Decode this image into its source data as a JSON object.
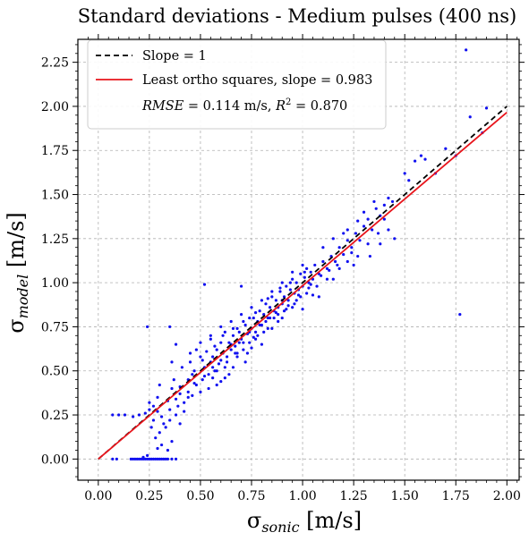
{
  "chart_data": {
    "type": "scatter",
    "title": "Standard deviations - Medium pulses (400 ns)",
    "xlabel": {
      "symbol": "σ",
      "subscript": "sonic",
      "unit": " [m/s]"
    },
    "ylabel": {
      "symbol": "σ",
      "subscript": "model",
      "unit": " [m/s]"
    },
    "xlim": [
      -0.1,
      2.06
    ],
    "ylim": [
      -0.12,
      2.38
    ],
    "x_ticks": [
      0.0,
      0.25,
      0.5,
      0.75,
      1.0,
      1.25,
      1.5,
      1.75,
      2.0
    ],
    "x_tick_labels": [
      "0.00",
      "0.25",
      "0.50",
      "0.75",
      "1.00",
      "1.25",
      "1.50",
      "1.75",
      "2.00"
    ],
    "y_ticks": [
      0.0,
      0.25,
      0.5,
      0.75,
      1.0,
      1.25,
      1.5,
      1.75,
      2.0,
      2.25
    ],
    "y_tick_labels": [
      "0.00",
      "0.25",
      "0.50",
      "0.75",
      "1.00",
      "1.25",
      "1.50",
      "1.75",
      "2.00",
      "2.25"
    ],
    "grid": true,
    "legend_position": "top-left",
    "legend": {
      "slope_line": "Slope = 1",
      "fit_line": "Least ortho squares, slope = 0.983",
      "stats": {
        "rmse_symbol": "RMSE",
        "rmse_value": " = 0.114 m/s, ",
        "r2_base": "R",
        "r2_exp": "2",
        "r2_value": " = 0.870"
      }
    },
    "lines": [
      {
        "name": "Slope = 1",
        "style": "dashed",
        "color": "#000000",
        "x": [
          0.0,
          2.0
        ],
        "y": [
          0.0,
          2.0
        ]
      },
      {
        "name": "Least ortho squares, slope = 0.983",
        "style": "solid",
        "color": "#e8141b",
        "x": [
          0.0,
          2.0
        ],
        "y": [
          0.0,
          1.966
        ]
      }
    ],
    "scatter_color": "#1010f0",
    "series": [
      {
        "points": [
          [
            0.07,
            0.25
          ],
          [
            0.1,
            0.25
          ],
          [
            0.13,
            0.25
          ],
          [
            0.17,
            0.24
          ],
          [
            0.2,
            0.25
          ],
          [
            0.23,
            0.26
          ],
          [
            0.25,
            0.28
          ],
          [
            0.27,
            0.3
          ],
          [
            0.29,
            0.35
          ],
          [
            0.3,
            0.42
          ],
          [
            0.24,
            0.75
          ],
          [
            0.35,
            0.75
          ],
          [
            0.52,
            0.99
          ],
          [
            0.7,
            0.98
          ],
          [
            0.9,
            0.8
          ],
          [
            0.3,
            0.15
          ],
          [
            0.32,
            0.2
          ],
          [
            0.35,
            0.28
          ],
          [
            0.34,
            0.33
          ],
          [
            0.26,
            0.18
          ],
          [
            0.28,
            0.12
          ],
          [
            0.36,
            0.1
          ],
          [
            0.34,
            0.05
          ],
          [
            0.38,
            0.25
          ],
          [
            0.4,
            0.2
          ],
          [
            0.39,
            0.3
          ],
          [
            0.42,
            0.27
          ],
          [
            0.4,
            0.41
          ],
          [
            0.44,
            0.45
          ],
          [
            0.44,
            0.35
          ],
          [
            0.37,
            0.45
          ],
          [
            0.36,
            0.55
          ],
          [
            0.38,
            0.65
          ],
          [
            0.41,
            0.52
          ],
          [
            0.45,
            0.55
          ],
          [
            0.46,
            0.48
          ],
          [
            0.47,
            0.43
          ],
          [
            0.48,
            0.62
          ],
          [
            0.5,
            0.58
          ],
          [
            0.51,
            0.45
          ],
          [
            0.52,
            0.52
          ],
          [
            0.53,
            0.61
          ],
          [
            0.54,
            0.48
          ],
          [
            0.55,
            0.55
          ],
          [
            0.56,
            0.58
          ],
          [
            0.57,
            0.5
          ],
          [
            0.58,
            0.62
          ],
          [
            0.59,
            0.54
          ],
          [
            0.6,
            0.66
          ],
          [
            0.61,
            0.6
          ],
          [
            0.62,
            0.52
          ],
          [
            0.63,
            0.58
          ],
          [
            0.64,
            0.66
          ],
          [
            0.65,
            0.62
          ],
          [
            0.66,
            0.7
          ],
          [
            0.67,
            0.64
          ],
          [
            0.68,
            0.58
          ],
          [
            0.69,
            0.72
          ],
          [
            0.7,
            0.68
          ],
          [
            0.71,
            0.62
          ],
          [
            0.72,
            0.76
          ],
          [
            0.73,
            0.71
          ],
          [
            0.74,
            0.66
          ],
          [
            0.75,
            0.74
          ],
          [
            0.76,
            0.8
          ],
          [
            0.77,
            0.72
          ],
          [
            0.78,
            0.78
          ],
          [
            0.79,
            0.84
          ],
          [
            0.8,
            0.76
          ],
          [
            0.81,
            0.82
          ],
          [
            0.82,
            0.88
          ],
          [
            0.83,
            0.8
          ],
          [
            0.84,
            0.86
          ],
          [
            0.85,
            0.92
          ],
          [
            0.86,
            0.84
          ],
          [
            0.87,
            0.9
          ],
          [
            0.88,
            0.86
          ],
          [
            0.89,
            0.95
          ],
          [
            0.9,
            0.88
          ],
          [
            0.91,
            0.92
          ],
          [
            0.92,
            0.98
          ],
          [
            0.93,
            0.9
          ],
          [
            0.94,
            0.96
          ],
          [
            0.95,
            1.02
          ],
          [
            0.96,
            0.94
          ],
          [
            0.97,
            1.0
          ],
          [
            0.98,
            0.96
          ],
          [
            0.99,
            1.05
          ],
          [
            1.0,
            0.98
          ],
          [
            1.01,
            1.03
          ],
          [
            1.02,
            1.08
          ],
          [
            1.03,
            1.0
          ],
          [
            1.04,
            1.06
          ],
          [
            1.05,
            1.02
          ],
          [
            1.06,
            1.1
          ],
          [
            1.08,
            1.05
          ],
          [
            1.1,
            1.12
          ],
          [
            1.12,
            1.08
          ],
          [
            1.14,
            1.15
          ],
          [
            1.16,
            1.12
          ],
          [
            1.18,
            1.2
          ],
          [
            1.2,
            1.16
          ],
          [
            1.22,
            1.24
          ],
          [
            1.24,
            1.2
          ],
          [
            1.26,
            1.28
          ],
          [
            1.28,
            1.24
          ],
          [
            1.3,
            1.32
          ],
          [
            1.32,
            1.36
          ],
          [
            1.34,
            1.3
          ],
          [
            1.36,
            1.42
          ],
          [
            1.38,
            1.38
          ],
          [
            1.4,
            1.44
          ],
          [
            1.42,
            1.48
          ],
          [
            1.44,
            1.46
          ],
          [
            1.24,
            1.17
          ],
          [
            1.22,
            1.3
          ],
          [
            1.2,
            1.28
          ],
          [
            1.18,
            1.08
          ],
          [
            1.15,
            1.25
          ],
          [
            1.1,
            1.2
          ],
          [
            1.05,
            0.93
          ],
          [
            1.0,
            0.85
          ],
          [
            0.95,
            0.86
          ],
          [
            0.88,
            0.78
          ],
          [
            0.85,
            0.74
          ],
          [
            0.8,
            0.65
          ],
          [
            0.75,
            0.63
          ],
          [
            0.72,
            0.55
          ],
          [
            0.68,
            0.6
          ],
          [
            0.66,
            0.52
          ],
          [
            0.64,
            0.48
          ],
          [
            0.62,
            0.46
          ],
          [
            0.6,
            0.44
          ],
          [
            0.58,
            0.42
          ],
          [
            0.56,
            0.46
          ],
          [
            0.54,
            0.4
          ],
          [
            0.5,
            0.38
          ],
          [
            0.48,
            0.42
          ],
          [
            0.46,
            0.36
          ],
          [
            0.44,
            0.38
          ],
          [
            0.42,
            0.32
          ],
          [
            0.4,
            0.37
          ],
          [
            0.38,
            0.34
          ],
          [
            0.36,
            0.4
          ],
          [
            0.35,
            0.22
          ],
          [
            0.33,
            0.18
          ],
          [
            0.31,
            0.24
          ],
          [
            0.29,
            0.27
          ],
          [
            0.27,
            0.22
          ],
          [
            0.25,
            0.32
          ],
          [
            0.55,
            0.7
          ],
          [
            0.6,
            0.75
          ],
          [
            0.65,
            0.78
          ],
          [
            0.7,
            0.82
          ],
          [
            0.75,
            0.86
          ],
          [
            0.8,
            0.9
          ],
          [
            0.85,
            0.95
          ],
          [
            0.9,
            1.0
          ],
          [
            0.95,
            1.06
          ],
          [
            1.0,
            1.1
          ],
          [
            0.45,
            0.6
          ],
          [
            0.5,
            0.66
          ],
          [
            0.55,
            0.68
          ],
          [
            0.62,
            0.72
          ],
          [
            0.68,
            0.74
          ],
          [
            0.74,
            0.8
          ],
          [
            0.78,
            0.7
          ],
          [
            0.83,
            0.74
          ],
          [
            0.88,
            0.82
          ],
          [
            0.92,
            0.85
          ],
          [
            0.97,
            0.9
          ],
          [
            1.02,
            0.94
          ],
          [
            1.07,
            0.98
          ],
          [
            1.12,
            1.02
          ],
          [
            1.17,
            1.1
          ],
          [
            1.22,
            1.12
          ],
          [
            1.27,
            1.15
          ],
          [
            1.32,
            1.22
          ],
          [
            1.37,
            1.28
          ],
          [
            1.42,
            1.3
          ],
          [
            1.3,
            1.4
          ],
          [
            1.35,
            1.46
          ],
          [
            1.4,
            1.36
          ],
          [
            1.45,
            1.25
          ],
          [
            1.33,
            1.15
          ],
          [
            1.38,
            1.22
          ],
          [
            1.27,
            1.35
          ],
          [
            1.25,
            1.1
          ],
          [
            1.15,
            1.02
          ],
          [
            1.08,
            0.92
          ],
          [
            1.5,
            1.62
          ],
          [
            1.52,
            1.58
          ],
          [
            1.55,
            1.69
          ],
          [
            1.58,
            1.72
          ],
          [
            1.6,
            1.7
          ],
          [
            1.65,
            1.62
          ],
          [
            1.7,
            1.76
          ],
          [
            1.75,
            1.72
          ],
          [
            1.82,
            1.94
          ],
          [
            1.88,
            1.85
          ],
          [
            1.9,
            1.99
          ],
          [
            1.8,
            2.32
          ],
          [
            1.77,
            0.82
          ],
          [
            0.16,
            0.0
          ],
          [
            0.17,
            0.0
          ],
          [
            0.18,
            0.0
          ],
          [
            0.19,
            0.0
          ],
          [
            0.2,
            0.0
          ],
          [
            0.21,
            0.0
          ],
          [
            0.22,
            0.0
          ],
          [
            0.23,
            0.0
          ],
          [
            0.24,
            0.0
          ],
          [
            0.25,
            0.0
          ],
          [
            0.26,
            0.0
          ],
          [
            0.27,
            0.0
          ],
          [
            0.28,
            0.0
          ],
          [
            0.29,
            0.0
          ],
          [
            0.3,
            0.0
          ],
          [
            0.31,
            0.0
          ],
          [
            0.32,
            0.0
          ],
          [
            0.33,
            0.0
          ],
          [
            0.34,
            0.0
          ],
          [
            0.36,
            0.0
          ],
          [
            0.38,
            0.0
          ],
          [
            0.07,
            0.0
          ],
          [
            0.09,
            0.0
          ],
          [
            0.22,
            0.01
          ],
          [
            0.24,
            0.02
          ],
          [
            0.31,
            0.08
          ],
          [
            0.29,
            0.06
          ],
          [
            0.73,
            0.6
          ],
          [
            0.77,
            0.68
          ],
          [
            0.81,
            0.72
          ],
          [
            0.86,
            0.8
          ],
          [
            0.91,
            0.84
          ],
          [
            0.96,
            0.88
          ],
          [
            0.99,
            0.92
          ],
          [
            1.04,
            0.99
          ],
          [
            1.09,
            1.04
          ],
          [
            1.13,
            1.07
          ],
          [
            0.58,
            0.5
          ],
          [
            0.63,
            0.55
          ],
          [
            0.67,
            0.6
          ],
          [
            0.71,
            0.66
          ],
          [
            0.76,
            0.69
          ],
          [
            0.82,
            0.78
          ],
          [
            0.87,
            0.83
          ],
          [
            0.93,
            0.87
          ],
          [
            0.98,
            0.93
          ],
          [
            1.03,
            0.97
          ],
          [
            0.51,
            0.56
          ],
          [
            0.57,
            0.64
          ],
          [
            0.61,
            0.7
          ],
          [
            0.66,
            0.74
          ],
          [
            0.71,
            0.78
          ],
          [
            0.77,
            0.83
          ],
          [
            0.83,
            0.91
          ],
          [
            0.89,
            0.97
          ],
          [
            0.94,
            1.0
          ],
          [
            1.01,
            1.06
          ],
          [
            0.47,
            0.5
          ],
          [
            0.52,
            0.47
          ],
          [
            0.56,
            0.52
          ],
          [
            0.6,
            0.56
          ],
          [
            0.65,
            0.65
          ],
          [
            0.69,
            0.66
          ],
          [
            0.74,
            0.72
          ],
          [
            0.79,
            0.76
          ],
          [
            0.84,
            0.8
          ],
          [
            0.9,
            0.9
          ]
        ]
      }
    ]
  }
}
